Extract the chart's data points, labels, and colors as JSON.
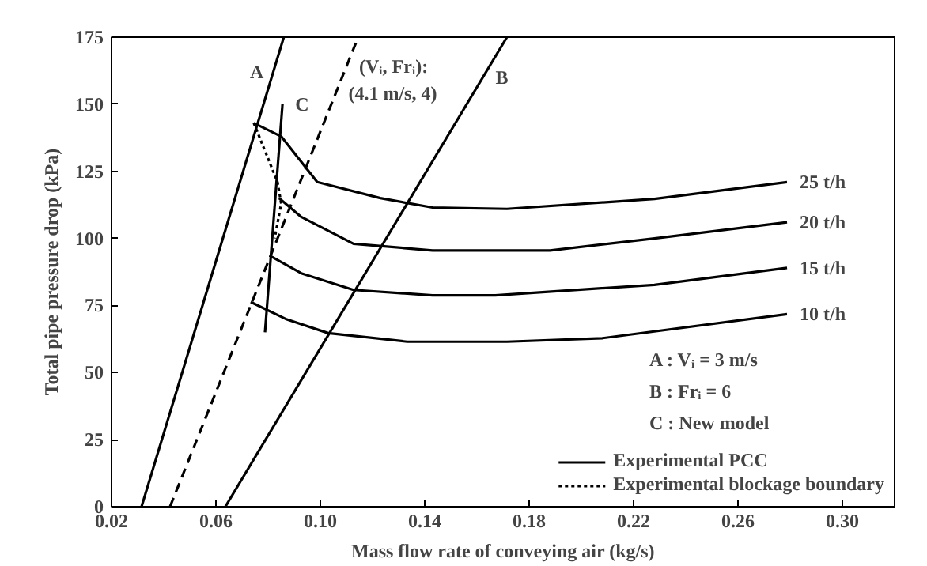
{
  "chart_data": {
    "type": "line",
    "xlabel": "Mass flow rate of conveying air (kg/s)",
    "ylabel": "Total pipe pressure drop (kPa)",
    "xlim": [
      0.02,
      0.32
    ],
    "ylim": [
      0,
      175
    ],
    "xticks": [
      {
        "value": 0.02,
        "label": "0.02"
      },
      {
        "value": 0.06,
        "label": "0.06"
      },
      {
        "value": 0.1,
        "label": "0.10"
      },
      {
        "value": 0.14,
        "label": "0.14"
      },
      {
        "value": 0.18,
        "label": "0.18"
      },
      {
        "value": 0.22,
        "label": "0.22"
      },
      {
        "value": 0.26,
        "label": "0.26"
      },
      {
        "value": 0.3,
        "label": "0.30"
      }
    ],
    "yticks": [
      0,
      25,
      50,
      75,
      100,
      125,
      150,
      175
    ],
    "grid": false,
    "legend": "bottom right",
    "marker": "none",
    "series": [
      {
        "color": "#000000",
        "line_style": "solid",
        "x": [
          0.0315,
          0.086
        ],
        "values": [
          0,
          175
        ]
      },
      {
        "color": "#000000",
        "line_style": "dashed",
        "x": [
          0.0424,
          0.1145
        ],
        "values": [
          0,
          175
        ]
      },
      {
        "color": "#000000",
        "line_style": "solid",
        "x": [
          0.0636,
          0.1715
        ],
        "values": [
          0,
          175
        ]
      },
      {
        "color": "#000000",
        "line_style": "solid",
        "x": [
          0.0855,
          0.0788
        ],
        "values": [
          150,
          65
        ]
      },
      {
        "name": "Experimental PCC",
        "color": "#000000",
        "line_style": "solid",
        "x": [
          0.0745,
          0.085,
          0.0988,
          0.123,
          0.143,
          0.1715,
          0.228,
          0.2788
        ],
        "values": [
          143,
          138,
          121,
          115,
          111.5,
          111,
          114.7,
          121
        ]
      },
      {
        "color": "#000000",
        "line_style": "solid",
        "x": [
          0.0842,
          0.0927,
          0.1127,
          0.143,
          0.188,
          0.228,
          0.2788
        ],
        "values": [
          115,
          108,
          98,
          95.5,
          95.5,
          100,
          106
        ]
      },
      {
        "color": "#000000",
        "line_style": "solid",
        "x": [
          0.0806,
          0.0927,
          0.1127,
          0.143,
          0.167,
          0.228,
          0.2788
        ],
        "values": [
          93.6,
          87,
          80.8,
          78.8,
          78.8,
          82.7,
          89
        ]
      },
      {
        "color": "#000000",
        "line_style": "solid",
        "x": [
          0.0733,
          0.0867,
          0.103,
          0.1333,
          0.1715,
          0.208,
          0.2788
        ],
        "values": [
          76.3,
          70,
          64.7,
          61.5,
          61.5,
          62.8,
          71.8
        ]
      },
      {
        "name": "Experimental blockage boundary",
        "color": "#000000",
        "line_style": "dotted",
        "x": [
          0.0745,
          0.0836,
          0.085,
          0.0825
        ],
        "values": [
          143,
          121,
          113,
          100
        ]
      }
    ],
    "annotations": [
      {
        "text": "A",
        "x": 0.0819,
        "y": 162
      },
      {
        "text": "B",
        "x": 0.1623,
        "y": 160
      },
      {
        "text": "C",
        "x": 0.0855,
        "y": 150
      },
      {
        "text": "(Vᵢ, Frᵢ):",
        "x": 0.11,
        "y": 164
      },
      {
        "text": "(4.1 m/s, 4)",
        "x": 0.1059,
        "y": 154
      },
      {
        "text": "25 t/h",
        "x": 0.2788,
        "y": 121
      },
      {
        "text": "20 t/h",
        "x": 0.2788,
        "y": 106
      },
      {
        "text": "15 t/h",
        "x": 0.2788,
        "y": 89
      },
      {
        "text": "10 t/h",
        "x": 0.2788,
        "y": 71.8
      },
      "A :  Vᵢ = 3 m/s",
      "B :  Frᵢ = 6",
      "C :  New model"
    ]
  }
}
